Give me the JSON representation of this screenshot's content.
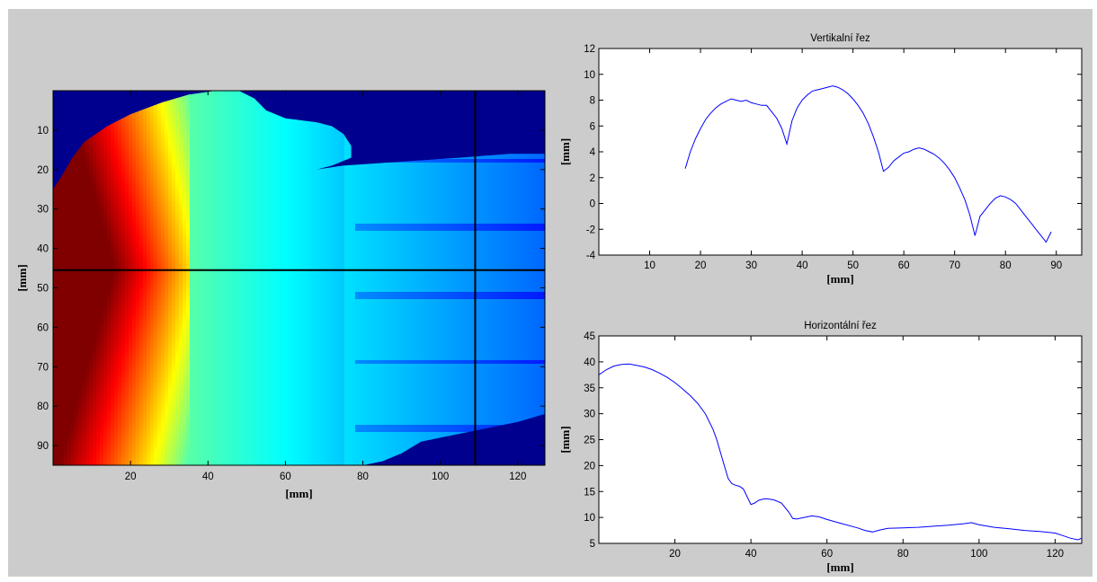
{
  "figure": {
    "background": "#cccccc"
  },
  "chart_data": [
    {
      "type": "heatmap",
      "title": "",
      "xlabel": "[mm]",
      "ylabel": "[mm]",
      "xlim": [
        0,
        127
      ],
      "ylim": [
        0,
        95
      ],
      "y_reversed": true,
      "xticks": [
        20,
        40,
        60,
        80,
        100,
        120
      ],
      "yticks": [
        10,
        20,
        30,
        40,
        50,
        60,
        70,
        80,
        90
      ],
      "colormap": "jet",
      "colormap_range": [
        -10,
        42
      ],
      "background_color": "#00008f",
      "crosshair": {
        "x": 109,
        "y": 45.5,
        "color": "#000000"
      }
    },
    {
      "type": "line",
      "title": "Vertikalní řez",
      "xlabel": "[mm]",
      "ylabel": "[mm]",
      "xlim": [
        0,
        95
      ],
      "ylim": [
        -4,
        12
      ],
      "xticks": [
        10,
        20,
        30,
        40,
        50,
        60,
        70,
        80,
        90
      ],
      "yticks": [
        -4,
        -2,
        0,
        2,
        4,
        6,
        8,
        10,
        12
      ],
      "line_color": "#0000ff",
      "series": [
        {
          "x": [
            17,
            18,
            19,
            20,
            21,
            22,
            23,
            24,
            25,
            26,
            27,
            28,
            29,
            30,
            31,
            32,
            33,
            34,
            35,
            36,
            37,
            38,
            39,
            40,
            41,
            42,
            43,
            44,
            45,
            46,
            47,
            48,
            49,
            50,
            51,
            52,
            53,
            54,
            55,
            56,
            57,
            58,
            59,
            60,
            61,
            62,
            63,
            64,
            65,
            66,
            67,
            68,
            69,
            70,
            71,
            72,
            73,
            74,
            75,
            76,
            77,
            78,
            79,
            80,
            81,
            82,
            83,
            84,
            85,
            86,
            87,
            88,
            89
          ],
          "y": [
            2.7,
            4.0,
            5.0,
            5.8,
            6.5,
            7.0,
            7.4,
            7.7,
            7.9,
            8.1,
            8.0,
            7.9,
            8.0,
            7.8,
            7.7,
            7.6,
            7.6,
            7.1,
            6.6,
            5.8,
            4.6,
            6.4,
            7.4,
            8.0,
            8.4,
            8.7,
            8.8,
            8.9,
            9.0,
            9.1,
            9.0,
            8.8,
            8.5,
            8.1,
            7.6,
            7.0,
            6.2,
            5.2,
            4.0,
            2.5,
            2.8,
            3.3,
            3.6,
            3.9,
            4.0,
            4.2,
            4.3,
            4.2,
            4.0,
            3.8,
            3.5,
            3.1,
            2.6,
            2.0,
            1.2,
            0.3,
            -0.9,
            -2.5,
            -1.0,
            -0.5,
            0.0,
            0.4,
            0.6,
            0.5,
            0.3,
            0.0,
            -0.5,
            -1.0,
            -1.5,
            -2.0,
            -2.5,
            -3.0,
            -2.2
          ]
        }
      ]
    },
    {
      "type": "line",
      "title": "Horizontální řez",
      "xlabel": "[mm]",
      "ylabel": "[mm]",
      "xlim": [
        0,
        127
      ],
      "ylim": [
        5,
        45
      ],
      "xticks": [
        20,
        40,
        60,
        80,
        100,
        120
      ],
      "yticks": [
        5,
        10,
        15,
        20,
        25,
        30,
        35,
        40,
        45
      ],
      "line_color": "#0000ff",
      "series": [
        {
          "x": [
            0,
            2,
            4,
            6,
            8,
            10,
            12,
            14,
            16,
            18,
            20,
            22,
            24,
            26,
            28,
            30,
            31,
            32,
            33,
            34,
            35,
            36,
            37,
            38,
            39,
            40,
            41,
            42,
            43,
            44,
            46,
            48,
            50,
            51,
            52,
            54,
            56,
            58,
            60,
            64,
            68,
            70,
            72,
            74,
            76,
            80,
            84,
            88,
            92,
            96,
            98,
            100,
            104,
            108,
            112,
            116,
            120,
            122,
            124,
            126,
            127
          ],
          "y": [
            37.5,
            38.5,
            39.2,
            39.5,
            39.6,
            39.3,
            39.0,
            38.5,
            37.8,
            37.0,
            36.0,
            34.8,
            33.5,
            32.0,
            30.0,
            27.0,
            25.0,
            22.5,
            20.0,
            17.5,
            16.5,
            16.2,
            16.0,
            15.5,
            14.0,
            12.5,
            12.8,
            13.3,
            13.5,
            13.6,
            13.4,
            12.8,
            11.0,
            9.8,
            9.7,
            10.0,
            10.3,
            10.1,
            9.6,
            8.8,
            8.0,
            7.5,
            7.2,
            7.6,
            7.9,
            8.0,
            8.1,
            8.3,
            8.5,
            8.8,
            9.0,
            8.6,
            8.1,
            7.8,
            7.5,
            7.3,
            7.0,
            6.5,
            6.0,
            5.7,
            6.0
          ]
        }
      ]
    }
  ]
}
